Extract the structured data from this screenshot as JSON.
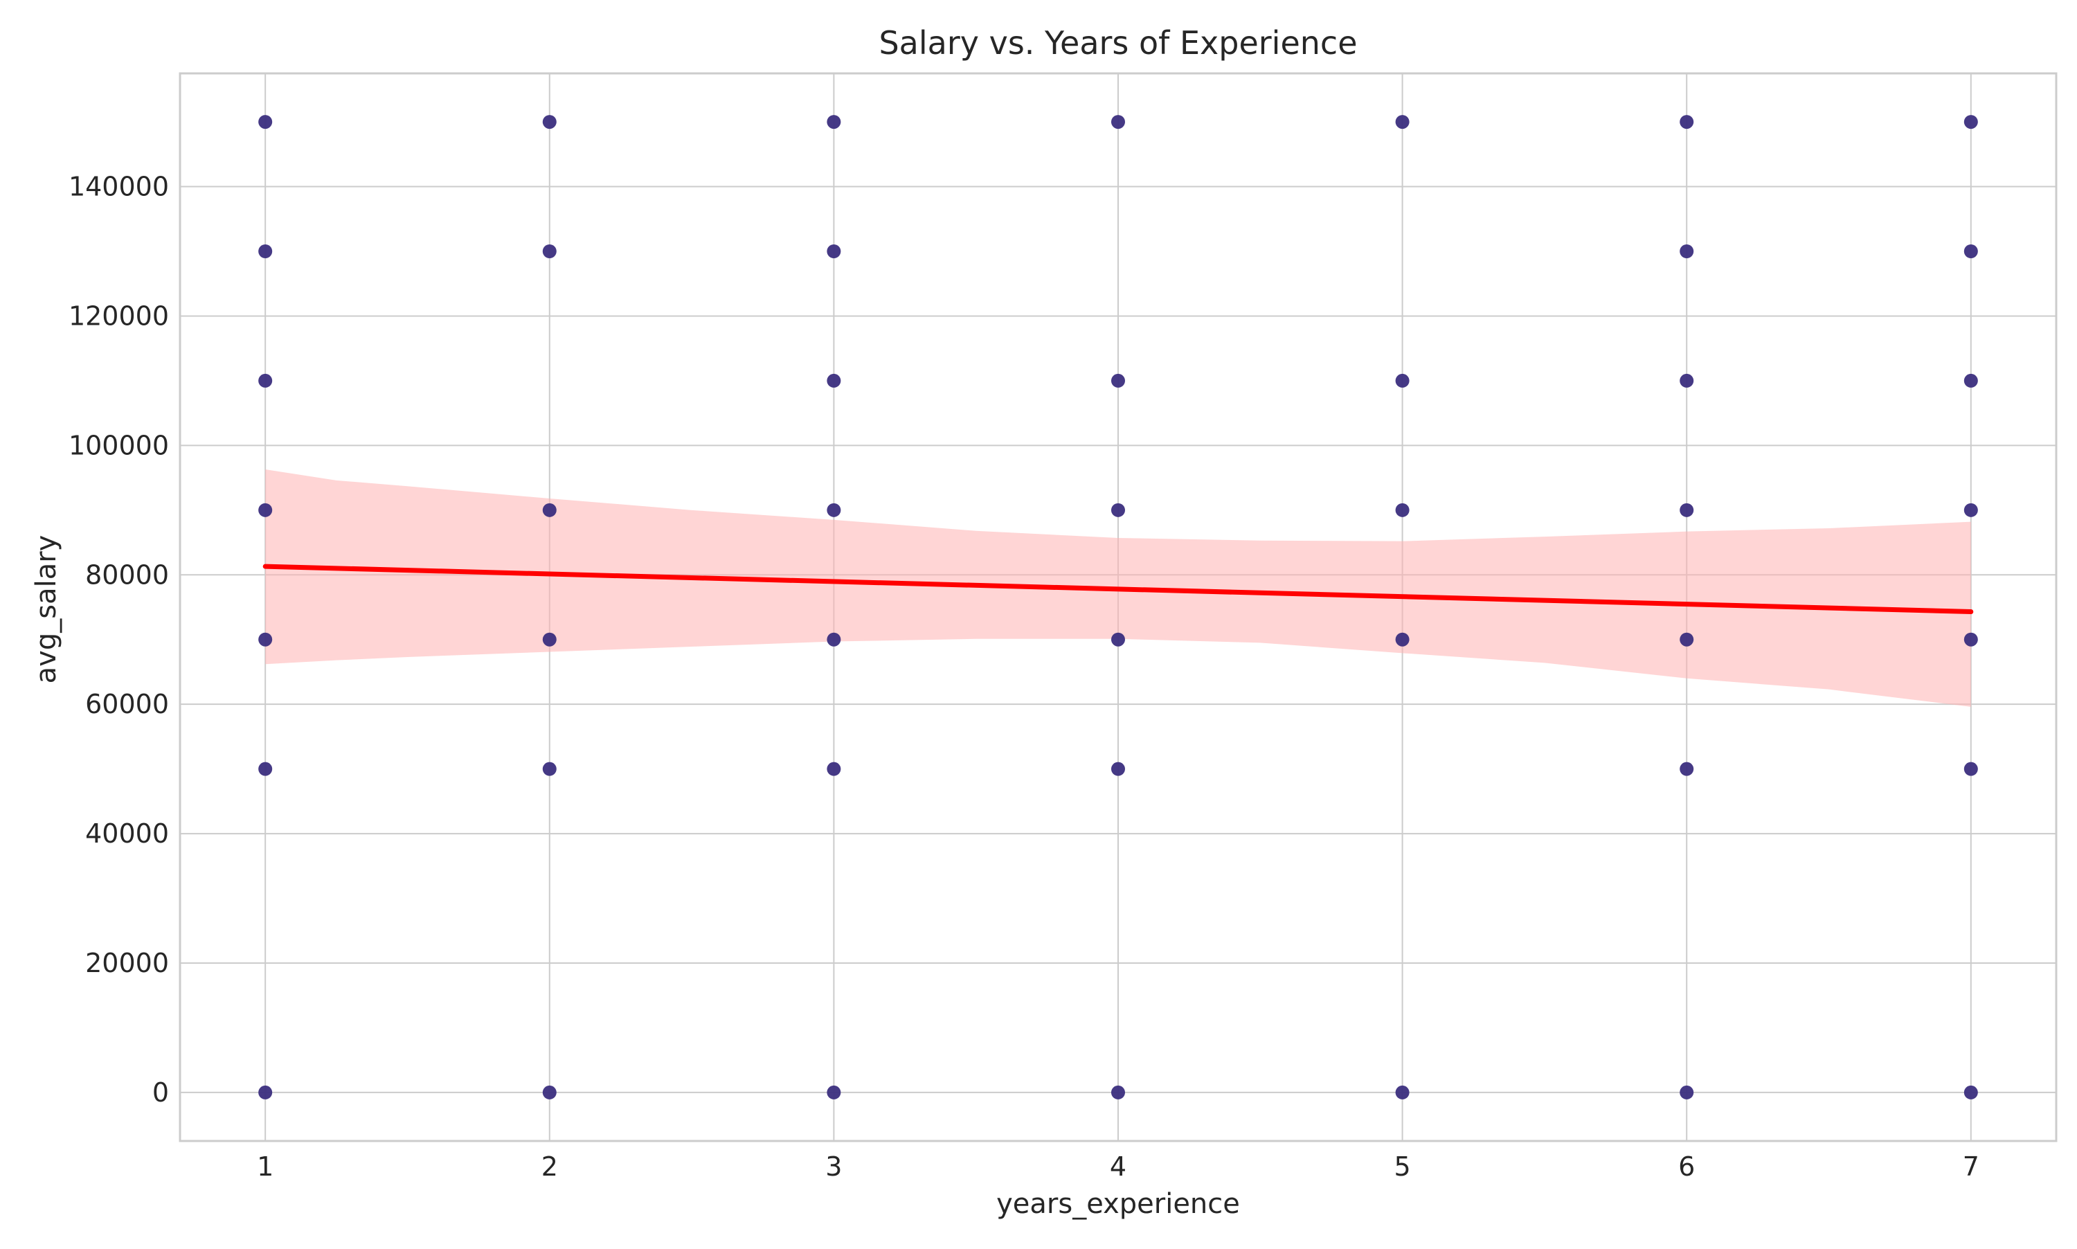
{
  "chart_data": {
    "type": "scatter",
    "title": "Salary vs. Years of Experience",
    "xlabel": "years_experience",
    "ylabel": "avg_salary",
    "xlim": [
      0.7,
      7.3
    ],
    "ylim": [
      -7500,
      157500
    ],
    "xticks": [
      1,
      2,
      3,
      4,
      5,
      6,
      7
    ],
    "yticks": [
      0,
      20000,
      40000,
      60000,
      80000,
      100000,
      120000,
      140000
    ],
    "grid": true,
    "points": [
      {
        "x": 1,
        "y": 150000
      },
      {
        "x": 1,
        "y": 130000
      },
      {
        "x": 1,
        "y": 110000
      },
      {
        "x": 1,
        "y": 90000
      },
      {
        "x": 1,
        "y": 70000
      },
      {
        "x": 1,
        "y": 50000
      },
      {
        "x": 1,
        "y": 0
      },
      {
        "x": 2,
        "y": 150000
      },
      {
        "x": 2,
        "y": 130000
      },
      {
        "x": 2,
        "y": 90000
      },
      {
        "x": 2,
        "y": 70000
      },
      {
        "x": 2,
        "y": 50000
      },
      {
        "x": 2,
        "y": 0
      },
      {
        "x": 3,
        "y": 150000
      },
      {
        "x": 3,
        "y": 130000
      },
      {
        "x": 3,
        "y": 110000
      },
      {
        "x": 3,
        "y": 90000
      },
      {
        "x": 3,
        "y": 70000
      },
      {
        "x": 3,
        "y": 50000
      },
      {
        "x": 3,
        "y": 0
      },
      {
        "x": 4,
        "y": 150000
      },
      {
        "x": 4,
        "y": 110000
      },
      {
        "x": 4,
        "y": 90000
      },
      {
        "x": 4,
        "y": 70000
      },
      {
        "x": 4,
        "y": 50000
      },
      {
        "x": 4,
        "y": 0
      },
      {
        "x": 5,
        "y": 150000
      },
      {
        "x": 5,
        "y": 110000
      },
      {
        "x": 5,
        "y": 90000
      },
      {
        "x": 5,
        "y": 70000
      },
      {
        "x": 5,
        "y": 0
      },
      {
        "x": 6,
        "y": 150000
      },
      {
        "x": 6,
        "y": 130000
      },
      {
        "x": 6,
        "y": 110000
      },
      {
        "x": 6,
        "y": 90000
      },
      {
        "x": 6,
        "y": 70000
      },
      {
        "x": 6,
        "y": 50000
      },
      {
        "x": 6,
        "y": 0
      },
      {
        "x": 7,
        "y": 150000
      },
      {
        "x": 7,
        "y": 130000
      },
      {
        "x": 7,
        "y": 110000
      },
      {
        "x": 7,
        "y": 90000
      },
      {
        "x": 7,
        "y": 70000
      },
      {
        "x": 7,
        "y": 50000
      },
      {
        "x": 7,
        "y": 0
      }
    ],
    "regression": {
      "x": [
        1,
        7
      ],
      "y": [
        81300,
        74300
      ]
    },
    "confidence_band": {
      "x": [
        1,
        1.25,
        1.5,
        2,
        2.5,
        3,
        3.5,
        4,
        4.5,
        5,
        5.5,
        6,
        6.5,
        7
      ],
      "upper": [
        96300,
        94600,
        93700,
        91800,
        90000,
        88500,
        86800,
        85700,
        85300,
        85200,
        85900,
        86700,
        87200,
        88200
      ],
      "lower": [
        66200,
        66800,
        67300,
        68100,
        68900,
        69700,
        70100,
        70100,
        69500,
        67900,
        66400,
        64000,
        62300,
        59600
      ]
    },
    "colors": {
      "point": "#3b2e7e",
      "regression_line": "#ff0000",
      "band": "#ffb3b3",
      "grid": "#cccccc",
      "frame": "#cccccc"
    }
  }
}
